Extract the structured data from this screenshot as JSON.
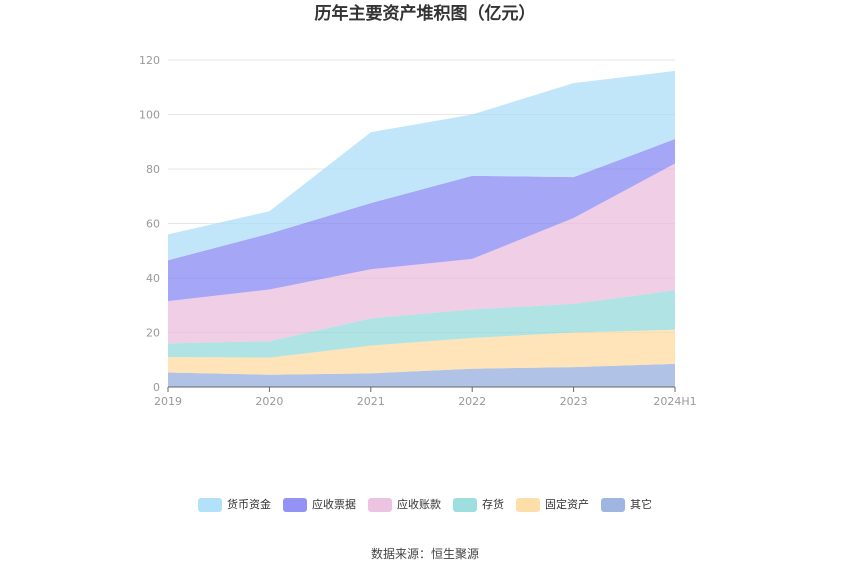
{
  "chart_data": {
    "type": "area",
    "stacked": true,
    "title": "历年主要资产堆积图（亿元）",
    "categories": [
      "2019",
      "2020",
      "2021",
      "2022",
      "2023",
      "2024H1"
    ],
    "ylim": [
      0,
      120
    ],
    "yticks": [
      0,
      20,
      40,
      60,
      80,
      100,
      120
    ],
    "grid": true,
    "legend_position": "bottom",
    "series": [
      {
        "name": "其它",
        "color": "#8eaadb",
        "values": [
          5.3,
          4.5,
          5.0,
          6.7,
          7.3,
          8.5
        ]
      },
      {
        "name": "固定资产",
        "color": "#fdd89a",
        "values": [
          5.7,
          6.3,
          10.2,
          11.3,
          12.7,
          12.5
        ]
      },
      {
        "name": "存货",
        "color": "#8ed8d8",
        "values": [
          5.0,
          6.0,
          10.0,
          10.5,
          10.5,
          14.5
        ]
      },
      {
        "name": "应收账款",
        "color": "#e9b9dc",
        "values": [
          15.5,
          19.0,
          18.0,
          18.5,
          31.5,
          46.5
        ]
      },
      {
        "name": "应收票据",
        "color": "#8080f3",
        "values": [
          15.0,
          20.5,
          24.3,
          30.5,
          15.0,
          9.0
        ]
      },
      {
        "name": "货币资金",
        "color": "#a6dcf8",
        "values": [
          9.5,
          8.2,
          26.0,
          22.5,
          34.5,
          25.0
        ]
      }
    ],
    "legend_order": [
      "货币资金",
      "应收票据",
      "应收账款",
      "存货",
      "固定资产",
      "其它"
    ]
  },
  "source": "数据来源：恒生聚源"
}
